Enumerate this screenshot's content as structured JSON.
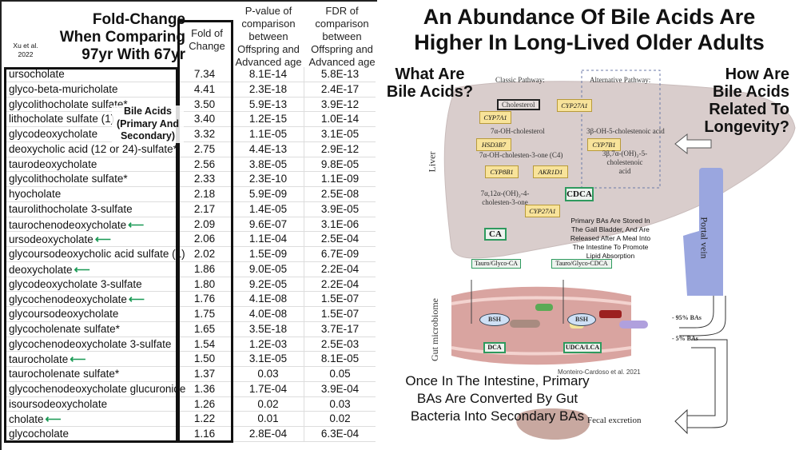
{
  "table": {
    "title": "Fold-Change When Comparing 97yr With 67yr",
    "citation": "Xu et al. 2022",
    "columns": [
      "Fold of Change",
      "P-value of comparison between Offspring and Advanced age",
      "FDR of comparison between Offspring and Advanced age"
    ],
    "annotation": "Bile Acids (Primary And Secondary)",
    "highlight_color": "#1a9a55",
    "rows": [
      {
        "name": "ursocholate",
        "fold": "7.34",
        "p": "8.1E-14",
        "fdr": "5.8E-13",
        "arrow": false
      },
      {
        "name": "glyco-beta-muricholate",
        "fold": "4.41",
        "p": "2.3E-18",
        "fdr": "2.4E-17",
        "arrow": false
      },
      {
        "name": "glycolithocholate sulfate*",
        "fold": "3.50",
        "p": "5.9E-13",
        "fdr": "3.9E-12",
        "arrow": false
      },
      {
        "name": "lithocholate sulfate (1)",
        "fold": "3.40",
        "p": "1.2E-15",
        "fdr": "1.0E-14",
        "arrow": false
      },
      {
        "name": "glycodeoxycholate",
        "fold": "3.32",
        "p": "1.1E-05",
        "fdr": "3.1E-05",
        "arrow": false
      },
      {
        "name": "deoxycholic acid (12 or 24)-sulfate*",
        "fold": "2.75",
        "p": "4.4E-13",
        "fdr": "2.9E-12",
        "arrow": false
      },
      {
        "name": "taurodeoxycholate",
        "fold": "2.56",
        "p": "3.8E-05",
        "fdr": "9.8E-05",
        "arrow": false
      },
      {
        "name": "glycolithocholate sulfate*",
        "fold": "2.33",
        "p": "2.3E-10",
        "fdr": "1.1E-09",
        "arrow": false
      },
      {
        "name": "hyocholate",
        "fold": "2.18",
        "p": "5.9E-09",
        "fdr": "2.5E-08",
        "arrow": false
      },
      {
        "name": "taurolithocholate 3-sulfate",
        "fold": "2.17",
        "p": "1.4E-05",
        "fdr": "3.9E-05",
        "arrow": false
      },
      {
        "name": "taurochenodeoxycholate",
        "fold": "2.09",
        "p": "9.6E-07",
        "fdr": "3.1E-06",
        "arrow": true
      },
      {
        "name": "ursodeoxycholate",
        "fold": "2.06",
        "p": "1.1E-04",
        "fdr": "2.5E-04",
        "arrow": true
      },
      {
        "name": "glycoursodeoxycholic acid sulfate (1)",
        "fold": "2.02",
        "p": "1.5E-09",
        "fdr": "6.7E-09",
        "arrow": false
      },
      {
        "name": "deoxycholate",
        "fold": "1.86",
        "p": "9.0E-05",
        "fdr": "2.2E-04",
        "arrow": true
      },
      {
        "name": "glycodeoxycholate 3-sulfate",
        "fold": "1.80",
        "p": "9.2E-05",
        "fdr": "2.2E-04",
        "arrow": false
      },
      {
        "name": "glycochenodeoxycholate",
        "fold": "1.76",
        "p": "4.1E-08",
        "fdr": "1.5E-07",
        "arrow": true
      },
      {
        "name": "glycoursodeoxycholate",
        "fold": "1.75",
        "p": "4.0E-08",
        "fdr": "1.5E-07",
        "arrow": false
      },
      {
        "name": "glycocholenate sulfate*",
        "fold": "1.65",
        "p": "3.5E-18",
        "fdr": "3.7E-17",
        "arrow": false
      },
      {
        "name": "glycochenodeoxycholate 3-sulfate",
        "fold": "1.54",
        "p": "1.2E-03",
        "fdr": "2.5E-03",
        "arrow": false
      },
      {
        "name": "taurocholate",
        "fold": "1.50",
        "p": "3.1E-05",
        "fdr": "8.1E-05",
        "arrow": true
      },
      {
        "name": "taurocholenate sulfate*",
        "fold": "1.37",
        "p": "0.03",
        "fdr": "0.05",
        "arrow": false
      },
      {
        "name": "glycochenodeoxycholate glucuronide",
        "fold": "1.36",
        "p": "1.7E-04",
        "fdr": "3.9E-04",
        "arrow": false
      },
      {
        "name": "isoursodeoxycholate",
        "fold": "1.26",
        "p": "0.02",
        "fdr": "0.03",
        "arrow": false
      },
      {
        "name": "cholate",
        "fold": "1.22",
        "p": "0.01",
        "fdr": "0.02",
        "arrow": true
      },
      {
        "name": "glycocholate",
        "fold": "1.16",
        "p": "2.8E-04",
        "fdr": "6.3E-04",
        "arrow": false
      }
    ]
  },
  "right": {
    "title_line1": "An Abundance Of Bile Acids Are",
    "title_line2": "Higher In Long-Lived Older Adults",
    "q1": "What Are Bile Acids?",
    "q2": "How Are Bile Acids Related To Longevity?",
    "storage_note": "Primary BAs Are Stored In The Gall Bladder, And Are Released After A Meal Into The Intestine To Promote Lipid Absorption",
    "conversion_note": "Once In The Intestine, Primary BAs Are Converted By Gut Bacteria Into Secondary BAs",
    "citation": "Monteiro-Cardoso et al. 2021"
  },
  "diagram": {
    "classic": "Classic Pathway:",
    "alternative": "Alternative Pathway:",
    "cholesterol": "Cholesterol",
    "cyp7a1": "CYP7A1",
    "cyp27a1_top": "CYP27A1",
    "oh_chol": "7α-OH-cholesterol",
    "hsd3b7": "HSD3B7",
    "c4": "7α-OH-cholesten-3-one (C4)",
    "cyp8b1": "CYP8B1",
    "akr1d1": "AKR1D1",
    "diol": "7α,12α-(OH)₂-4-cholesten-3-one",
    "cholestenoic": "3β-OH-5-cholestenoic acid",
    "cyp7b1": "CYP7B1",
    "diol_acid": "3β,7α-(OH)₂-5-cholestenoic acid",
    "cdca": "CDCA",
    "cyp27a1_low": "CYP27A1",
    "ca": "CA",
    "tg_ca": "Tauro/Glyco-CA",
    "tg_cdca": "Tauro/Glyco-CDCA",
    "liver": "Liver",
    "gut": "Gut microbiome",
    "bsh": "BSH",
    "dca": "DCA",
    "udca_lca": "UDCA/LCA",
    "portal_vein": "Portal vein",
    "pct95": "- 95% BAs",
    "pct5": "- 5% BAs",
    "fecal": "Fecal excretion",
    "liver_color": "#d9cdcc",
    "vein_color": "#9aa6df",
    "gut_color": "#d9a4a0"
  }
}
